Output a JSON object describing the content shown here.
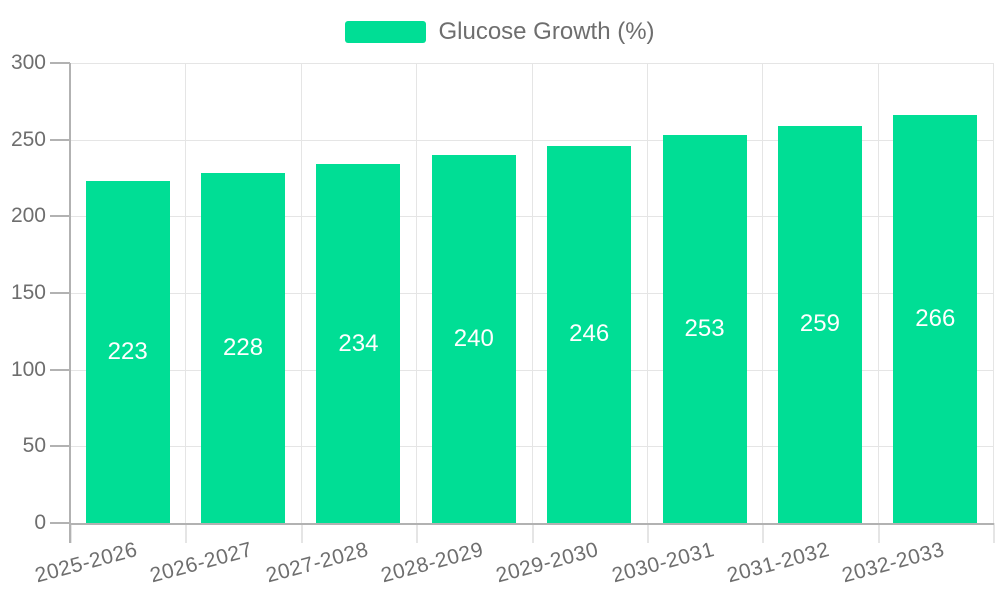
{
  "legend": {
    "label": "Glucose Growth (%)"
  },
  "chart_data": {
    "type": "bar",
    "title": "",
    "xlabel": "",
    "ylabel": "",
    "categories": [
      "2025-2026",
      "2026-2027",
      "2027-2028",
      "2028-2029",
      "2029-2030",
      "2030-2031",
      "2031-2032",
      "2032-2033"
    ],
    "series": [
      {
        "name": "Glucose Growth (%)",
        "values": [
          223,
          228,
          234,
          240,
          246,
          253,
          259,
          266
        ]
      }
    ],
    "data_labels": [
      223,
      228,
      234,
      240,
      246,
      253,
      259,
      266
    ],
    "ylim": [
      0,
      300
    ],
    "yticks": [
      0,
      50,
      100,
      150,
      200,
      250,
      300
    ],
    "grid": "on",
    "legend_position": "top",
    "x_label_rotation_deg": -15,
    "colors": {
      "bar": "#00DE95",
      "grid": "#e5e5e5",
      "axis": "#b2b2b2",
      "label_text": "#6e6e6e",
      "data_label": "#ffffff",
      "background": "#ffffff"
    }
  }
}
